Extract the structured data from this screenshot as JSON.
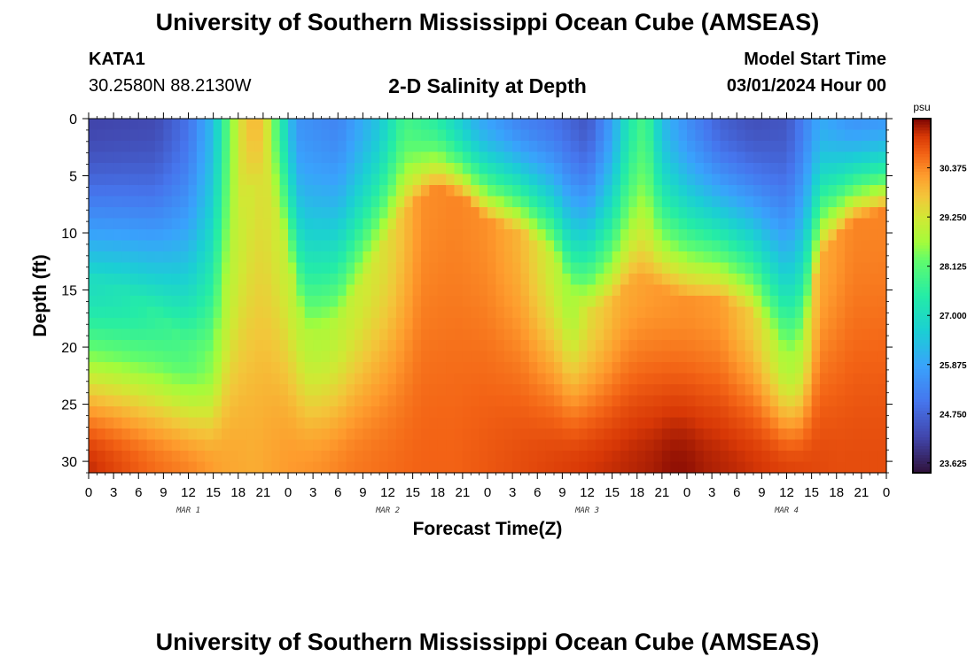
{
  "header": {
    "title": "University of Southern Mississippi Ocean Cube (AMSEAS)",
    "station": "KATA1",
    "coords": "30.2580N  88.2130W",
    "subtitle": "2-D Salinity at Depth",
    "model_start_label": "Model Start Time",
    "model_start_value": "03/01/2024 Hour 00"
  },
  "footer": {
    "title": "University of Southern Mississippi Ocean Cube (AMSEAS)"
  },
  "chart_data": {
    "type": "heatmap",
    "title": "2-D Salinity at Depth",
    "xlabel": "Forecast Time(Z)",
    "ylabel": "Depth (ft)",
    "x_ticks": [
      "0",
      "3",
      "6",
      "9",
      "12",
      "15",
      "18",
      "21",
      "0",
      "3",
      "6",
      "9",
      "12",
      "15",
      "18",
      "21",
      "0",
      "3",
      "6",
      "9",
      "12",
      "15",
      "18",
      "21",
      "0",
      "3",
      "6",
      "9",
      "12",
      "15",
      "18",
      "21",
      "0"
    ],
    "day_labels": [
      "MAR 1",
      "MAR 2",
      "MAR 3",
      "MAR 4"
    ],
    "y_ticks": [
      "0",
      "5",
      "10",
      "15",
      "20",
      "25",
      "30"
    ],
    "ylim": [
      0,
      31
    ],
    "xlim_hours": [
      0,
      96
    ],
    "colorbar": {
      "unit": "psu",
      "ticks": [
        "30.375",
        "29.250",
        "28.125",
        "27.000",
        "25.875",
        "24.750",
        "23.625"
      ],
      "range": [
        23.4,
        31.5
      ]
    },
    "surface_salinity_psu": [
      [
        0,
        24.2
      ],
      [
        8,
        24.3
      ],
      [
        12,
        25.0
      ],
      [
        15,
        26.3
      ],
      [
        17,
        28.4
      ],
      [
        19,
        29.8
      ],
      [
        21,
        29.8
      ],
      [
        23,
        27.6
      ],
      [
        25,
        25.6
      ],
      [
        30,
        25.3
      ],
      [
        35,
        26.5
      ],
      [
        38,
        27.9
      ],
      [
        42,
        27.5
      ],
      [
        47,
        26.0
      ],
      [
        52,
        25.3
      ],
      [
        56,
        25.0
      ],
      [
        60,
        24.5
      ],
      [
        63,
        25.8
      ],
      [
        65,
        27.3
      ],
      [
        67,
        28.0
      ],
      [
        69,
        26.3
      ],
      [
        72,
        25.5
      ],
      [
        76,
        24.7
      ],
      [
        80,
        24.4
      ],
      [
        84,
        24.5
      ],
      [
        86,
        25.2
      ],
      [
        88,
        26.0
      ],
      [
        92,
        25.6
      ],
      [
        96,
        25.7
      ]
    ],
    "bottom_salinity_psu": [
      [
        0,
        31.2
      ],
      [
        4,
        30.9
      ],
      [
        8,
        30.6
      ],
      [
        12,
        30.4
      ],
      [
        16,
        30.1
      ],
      [
        20,
        30.0
      ],
      [
        24,
        30.2
      ],
      [
        28,
        30.3
      ],
      [
        32,
        30.5
      ],
      [
        36,
        30.6
      ],
      [
        40,
        30.7
      ],
      [
        44,
        30.7
      ],
      [
        48,
        30.8
      ],
      [
        52,
        30.9
      ],
      [
        56,
        31.0
      ],
      [
        60,
        31.1
      ],
      [
        64,
        31.2
      ],
      [
        68,
        31.3
      ],
      [
        70,
        31.4
      ],
      [
        72,
        31.4
      ],
      [
        74,
        31.3
      ],
      [
        78,
        31.2
      ],
      [
        84,
        31.0
      ],
      [
        90,
        30.9
      ],
      [
        96,
        30.9
      ]
    ],
    "mid_depth_salinity_psu": [
      [
        0,
        27.0
      ],
      [
        4,
        27.2
      ],
      [
        8,
        27.6
      ],
      [
        12,
        28.0
      ],
      [
        15,
        28.5
      ],
      [
        18,
        29.1
      ],
      [
        21,
        29.4
      ],
      [
        24,
        29.0
      ],
      [
        28,
        28.8
      ],
      [
        32,
        29.1
      ],
      [
        36,
        29.4
      ],
      [
        38,
        29.8
      ],
      [
        40,
        30.3
      ],
      [
        44,
        30.4
      ],
      [
        48,
        30.3
      ],
      [
        52,
        29.9
      ],
      [
        56,
        29.0
      ],
      [
        58,
        28.6
      ],
      [
        60,
        29.4
      ],
      [
        64,
        30.0
      ],
      [
        68,
        30.2
      ],
      [
        72,
        30.3
      ],
      [
        76,
        30.2
      ],
      [
        80,
        29.6
      ],
      [
        84,
        28.7
      ],
      [
        86,
        28.9
      ],
      [
        88,
        30.0
      ],
      [
        92,
        30.4
      ],
      [
        96,
        30.4
      ]
    ],
    "halocline_depth_ft": [
      [
        0,
        14
      ],
      [
        4,
        15
      ],
      [
        8,
        17
      ],
      [
        12,
        20
      ],
      [
        15,
        21
      ],
      [
        17,
        13
      ],
      [
        20,
        5
      ],
      [
        23,
        9
      ],
      [
        26,
        19
      ],
      [
        30,
        18
      ],
      [
        34,
        13
      ],
      [
        38,
        8
      ],
      [
        42,
        6
      ],
      [
        45,
        7
      ],
      [
        48,
        9
      ],
      [
        52,
        10
      ],
      [
        56,
        12
      ],
      [
        58,
        15
      ],
      [
        60,
        17
      ],
      [
        63,
        16
      ],
      [
        66,
        14
      ],
      [
        69,
        15
      ],
      [
        72,
        16
      ],
      [
        76,
        16
      ],
      [
        80,
        17
      ],
      [
        84,
        21
      ],
      [
        86,
        20
      ],
      [
        88,
        12
      ],
      [
        92,
        9
      ],
      [
        96,
        8
      ]
    ]
  }
}
